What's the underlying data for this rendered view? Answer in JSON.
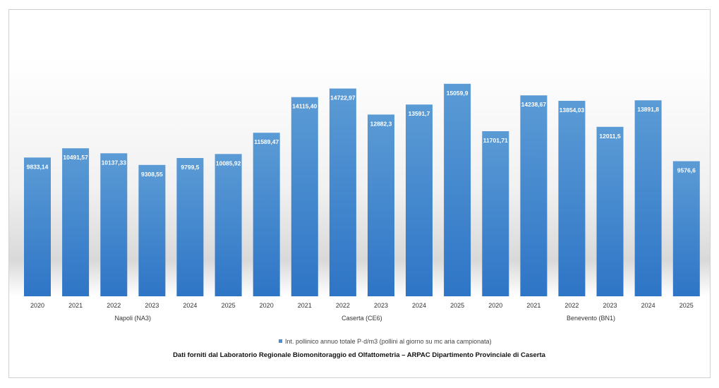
{
  "chart_data": {
    "type": "bar",
    "groups": [
      {
        "name": "Napoli (NA3)",
        "categories": [
          "2020",
          "2021",
          "2022",
          "2023",
          "2024",
          "2025"
        ]
      },
      {
        "name": "Caserta (CE6)",
        "categories": [
          "2020",
          "2021",
          "2022",
          "2023",
          "2024",
          "2025"
        ]
      },
      {
        "name": "Benevento (BN1)",
        "categories": [
          "2020",
          "2021",
          "2022",
          "2023",
          "2024",
          "2025"
        ]
      }
    ],
    "series": [
      {
        "name": "Int. pollinico annuo totale P·d/m3 (pollini al giorno su mc aria campionata)",
        "values": [
          9833.14,
          10491.57,
          10137.33,
          9308.55,
          9799.5,
          10085.92,
          11589.47,
          14115.4,
          14722.97,
          12882.3,
          13591.7,
          15059.9,
          11701.71,
          14238.67,
          13854.03,
          12011.5,
          13891.8,
          9576.6
        ],
        "labels": [
          "9833,14",
          "10491,57",
          "10137,33",
          "9308,55",
          "9799,5",
          "10085,92",
          "11589,47",
          "14115,40",
          "14722,97",
          "12882,3",
          "13591,7",
          "15059,9",
          "11701,71",
          "14238,67",
          "13854,03",
          "12011,5",
          "13891,8",
          "9576,6"
        ]
      }
    ],
    "ylim": [
      0,
      17000
    ],
    "grid": false,
    "legend": "bottom",
    "footer": "Dati forniti dal Laboratorio Regionale Biomonitoraggio ed Olfattometria – ARPAC Dipartimento Provinciale di Caserta"
  },
  "colors": {
    "bar_top": "#5b9bd5",
    "bar_bottom": "#2e75c6"
  }
}
